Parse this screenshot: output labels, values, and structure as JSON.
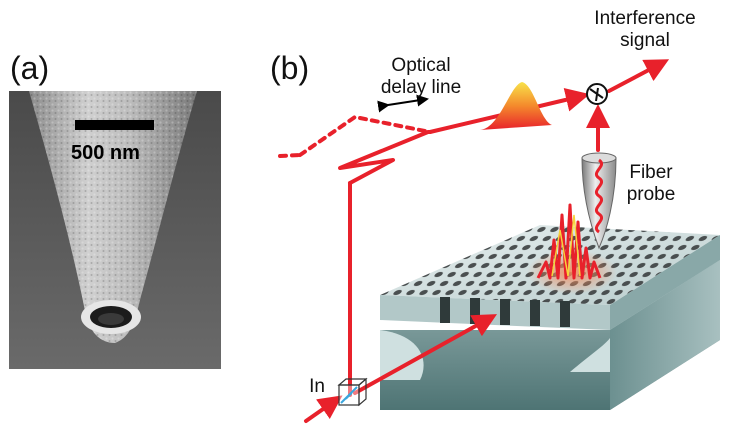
{
  "panel_a": {
    "label": "(a)",
    "scale_bar_label": "500 nm"
  },
  "panel_b": {
    "label": "(b)",
    "delay_line_label_line1": "Optical",
    "delay_line_label_line2": "delay line",
    "interference_label_line1": "Interference",
    "interference_label_line2": "signal",
    "fiber_label_line1": "Fiber",
    "fiber_label_line2": "probe",
    "input_label": "In"
  },
  "colors": {
    "beam": "#e8212b",
    "sem_background": "#5a5a5a",
    "waveguide_top": "#d6e2e2",
    "waveguide_side": "#5c8484",
    "scale_bar": "#000000"
  }
}
